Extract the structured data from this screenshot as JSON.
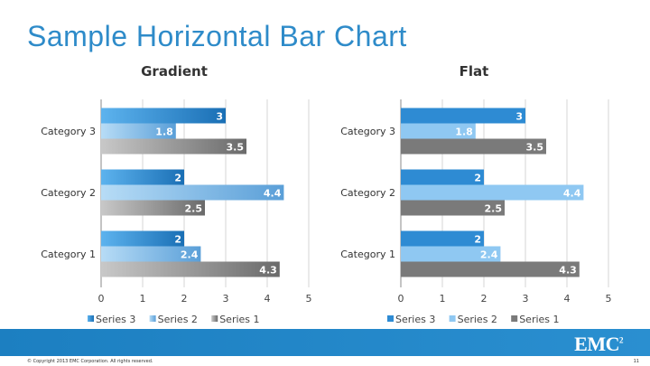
{
  "slide": {
    "title": "Sample Horizontal Bar Chart",
    "logo": "EMC",
    "logo_sup": "2",
    "copyright": "© Copyright 2013 EMC Corporation. All rights reserved.",
    "page_number": "11"
  },
  "colors": {
    "series3_flat": "#2e8bd3",
    "series2_flat": "#8fc8f2",
    "series1_flat": "#7a7a7a",
    "footer": "#1f84c6"
  },
  "chart_data": [
    {
      "type": "bar",
      "orientation": "horizontal",
      "style": "gradient",
      "title": "Gradient",
      "categories": [
        "Category 1",
        "Category 2",
        "Category 3"
      ],
      "series": [
        {
          "name": "Series 1",
          "values": [
            4.3,
            2.5,
            3.5
          ]
        },
        {
          "name": "Series 2",
          "values": [
            2.4,
            4.4,
            1.8
          ]
        },
        {
          "name": "Series 3",
          "values": [
            2,
            2,
            3
          ]
        }
      ],
      "xlim": [
        0,
        5
      ],
      "xticks": [
        0,
        1,
        2,
        3,
        4,
        5
      ],
      "grid": true,
      "legend": "bottom",
      "legend_order": [
        "Series 3",
        "Series 2",
        "Series 1"
      ]
    },
    {
      "type": "bar",
      "orientation": "horizontal",
      "style": "flat",
      "title": "Flat",
      "categories": [
        "Category 1",
        "Category 2",
        "Category 3"
      ],
      "series": [
        {
          "name": "Series 1",
          "values": [
            4.3,
            2.5,
            3.5
          ]
        },
        {
          "name": "Series 2",
          "values": [
            2.4,
            4.4,
            1.8
          ]
        },
        {
          "name": "Series 3",
          "values": [
            2,
            2,
            3
          ]
        }
      ],
      "xlim": [
        0,
        5
      ],
      "xticks": [
        0,
        1,
        2,
        3,
        4,
        5
      ],
      "grid": true,
      "legend": "bottom",
      "legend_order": [
        "Series 3",
        "Series 2",
        "Series 1"
      ]
    }
  ]
}
